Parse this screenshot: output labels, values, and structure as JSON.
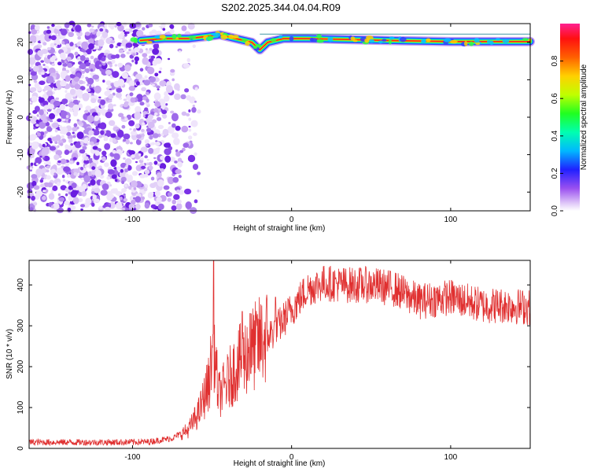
{
  "title": "S202.2025.344.04.04.R09",
  "colors": {
    "trace": "#e03030",
    "frame": "#000000"
  },
  "chart_data": [
    {
      "type": "heatmap",
      "xlabel": "Height of straight line (km)",
      "ylabel": "Frequency (Hz)",
      "xlim": [
        -165,
        150
      ],
      "ylim": [
        -25,
        25
      ],
      "xticks": [
        -100,
        0,
        100
      ],
      "yticks": [
        -20,
        -10,
        0,
        10,
        20
      ],
      "colorbar": {
        "label": "Normalized spectral amplitude",
        "range": [
          0,
          1
        ],
        "ticks": [
          "0.0",
          "0.2",
          "0.4",
          "0.6",
          "0.8"
        ],
        "colormap": "rainbow"
      },
      "noise_region_x": [
        -165,
        -70
      ],
      "ridge": {
        "description": "narrowband line near 20-22 Hz",
        "points": [
          [
            -95,
            20.5
          ],
          [
            -80,
            21
          ],
          [
            -65,
            21
          ],
          [
            -55,
            21.5
          ],
          [
            -45,
            22
          ],
          [
            -35,
            21
          ],
          [
            -25,
            20
          ],
          [
            -20,
            18
          ],
          [
            -15,
            20
          ],
          [
            -5,
            21
          ],
          [
            10,
            21
          ],
          [
            30,
            20.8
          ],
          [
            60,
            20.5
          ],
          [
            100,
            20.2
          ],
          [
            150,
            20.2
          ]
        ]
      }
    },
    {
      "type": "line",
      "xlabel": "Height of straight line (km)",
      "ylabel": "SNR (10 * v/v)",
      "xlim": [
        -165,
        150
      ],
      "ylim": [
        0,
        460
      ],
      "xticks": [
        -100,
        0,
        100
      ],
      "yticks": [
        0,
        100,
        200,
        300,
        400
      ],
      "series": [
        {
          "color": "#e03030",
          "x": [
            -165,
            -140,
            -110,
            -90,
            -75,
            -65,
            -58,
            -52,
            -49,
            -46,
            -42,
            -35,
            -28,
            -20,
            -10,
            0,
            10,
            20,
            35,
            50,
            65,
            80,
            100,
            120,
            135,
            150
          ],
          "y": [
            15,
            15,
            15,
            16,
            25,
            45,
            90,
            160,
            260,
            130,
            150,
            200,
            230,
            260,
            290,
            340,
            390,
            405,
            400,
            400,
            390,
            360,
            370,
            350,
            350,
            345
          ],
          "spikes": [
            [
              -49,
              460
            ],
            [
              -31,
              335
            ],
            [
              -26,
              330
            ],
            [
              -10,
              370
            ]
          ]
        }
      ]
    }
  ]
}
